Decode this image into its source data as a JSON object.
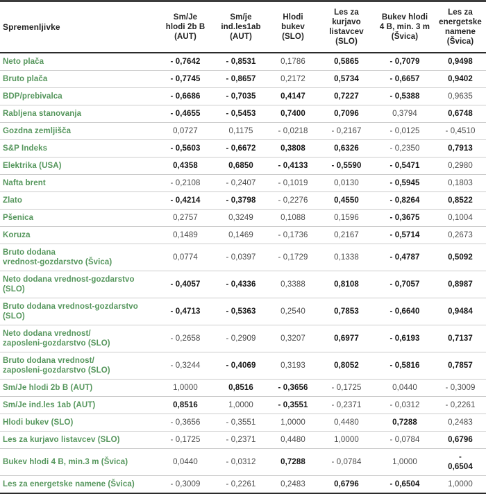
{
  "accent_colors": {
    "row_label_green": "#55965c",
    "bold_value": "#161616",
    "normal_value": "#4a4a4a",
    "separator_gray": "#cccccc",
    "border_dark": "#2b2b2b"
  },
  "chart_data": {
    "type": "table",
    "title": "",
    "variable_header": "Spremenljivke",
    "columns": [
      "Sm/Je\nhlodi 2b B\n(AUT)",
      "Sm/je\nind.les1ab\n(AUT)",
      "Hlodi\nbukev\n(SLO)",
      "Les za\nkurjavo\nlistavcev\n(SLO)",
      "Bukev hlodi\n4 B, min. 3 m\n(Švica)",
      "Les za\nenergetske\nnamene\n(Švica)"
    ],
    "bold_meaning": "bold = emphasized correlation coefficient",
    "rows": [
      {
        "label": "Neto plača",
        "cells": [
          {
            "v": "- 0,7642",
            "b": true
          },
          {
            "v": "- 0,8531",
            "b": true
          },
          {
            "v": "0,1786",
            "b": false
          },
          {
            "v": "0,5865",
            "b": true
          },
          {
            "v": "- 0,7079",
            "b": true
          },
          {
            "v": "0,9498",
            "b": true
          }
        ]
      },
      {
        "label": "Bruto plača",
        "cells": [
          {
            "v": "- 0,7745",
            "b": true
          },
          {
            "v": "- 0,8657",
            "b": true
          },
          {
            "v": "0,2172",
            "b": false
          },
          {
            "v": "0,5734",
            "b": true
          },
          {
            "v": "- 0,6657",
            "b": true
          },
          {
            "v": "0,9402",
            "b": true
          }
        ]
      },
      {
        "label": "BDP/prebivalca",
        "cells": [
          {
            "v": "- 0,6686",
            "b": true
          },
          {
            "v": "- 0,7035",
            "b": true
          },
          {
            "v": "0,4147",
            "b": true
          },
          {
            "v": "0,7227",
            "b": true
          },
          {
            "v": "- 0,5388",
            "b": true
          },
          {
            "v": "0,9635",
            "b": false
          }
        ]
      },
      {
        "label": "Rabljena stanovanja",
        "cells": [
          {
            "v": "- 0,4655",
            "b": true
          },
          {
            "v": "- 0,5453",
            "b": true
          },
          {
            "v": "0,7400",
            "b": true
          },
          {
            "v": "0,7096",
            "b": true
          },
          {
            "v": "0,3794",
            "b": false
          },
          {
            "v": "0,6748",
            "b": true
          }
        ]
      },
      {
        "label": "Gozdna zemljišča",
        "cells": [
          {
            "v": "0,0727",
            "b": false
          },
          {
            "v": "0,1175",
            "b": false
          },
          {
            "v": "- 0,0218",
            "b": false
          },
          {
            "v": "- 0,2167",
            "b": false
          },
          {
            "v": "- 0,0125",
            "b": false
          },
          {
            "v": "- 0,4510",
            "b": false
          }
        ]
      },
      {
        "label": "S&P Indeks",
        "cells": [
          {
            "v": "- 0,5603",
            "b": true
          },
          {
            "v": "- 0,6672",
            "b": true
          },
          {
            "v": "0,3808",
            "b": true
          },
          {
            "v": "0,6326",
            "b": true
          },
          {
            "v": "- 0,2350",
            "b": false
          },
          {
            "v": "0,7913",
            "b": true
          }
        ]
      },
      {
        "label": "Elektrika (USA)",
        "cells": [
          {
            "v": "0,4358",
            "b": true
          },
          {
            "v": "0,6850",
            "b": true
          },
          {
            "v": "- 0,4133",
            "b": true
          },
          {
            "v": "- 0,5590",
            "b": true
          },
          {
            "v": "- 0,5471",
            "b": true
          },
          {
            "v": "0,2980",
            "b": false
          }
        ]
      },
      {
        "label": "Nafta brent",
        "cells": [
          {
            "v": "- 0,2108",
            "b": false
          },
          {
            "v": "- 0,2407",
            "b": false
          },
          {
            "v": "- 0,1019",
            "b": false
          },
          {
            "v": "0,0130",
            "b": false
          },
          {
            "v": "- 0,5945",
            "b": true
          },
          {
            "v": "0,1803",
            "b": false
          }
        ]
      },
      {
        "label": "Zlato",
        "cells": [
          {
            "v": "- 0,4214",
            "b": true
          },
          {
            "v": "- 0,3798",
            "b": true
          },
          {
            "v": "- 0,2276",
            "b": false
          },
          {
            "v": "0,4550",
            "b": true
          },
          {
            "v": "- 0,8264",
            "b": true
          },
          {
            "v": "0,8522",
            "b": true
          }
        ]
      },
      {
        "label": "Pšenica",
        "cells": [
          {
            "v": "0,2757",
            "b": false
          },
          {
            "v": "0,3249",
            "b": false
          },
          {
            "v": "0,1088",
            "b": false
          },
          {
            "v": "0,1596",
            "b": false
          },
          {
            "v": "- 0,3675",
            "b": true
          },
          {
            "v": "0,1004",
            "b": false
          }
        ]
      },
      {
        "label": "Koruza",
        "cells": [
          {
            "v": "0,1489",
            "b": false
          },
          {
            "v": "0,1469",
            "b": false
          },
          {
            "v": "- 0,1736",
            "b": false
          },
          {
            "v": "0,2167",
            "b": false
          },
          {
            "v": "- 0,5714",
            "b": true
          },
          {
            "v": "0,2673",
            "b": false
          }
        ]
      },
      {
        "label": "Bruto dodana\nvrednost-gozdarstvo (Švica)",
        "cells": [
          {
            "v": "0,0774",
            "b": false
          },
          {
            "v": "- 0,0397",
            "b": false
          },
          {
            "v": "- 0,1729",
            "b": false
          },
          {
            "v": "0,1338",
            "b": false
          },
          {
            "v": "- 0,4787",
            "b": true
          },
          {
            "v": "0,5092",
            "b": true
          }
        ]
      },
      {
        "label": "Neto dodana vrednost-gozdarstvo (SLO)",
        "cells": [
          {
            "v": "- 0,4057",
            "b": true
          },
          {
            "v": "- 0,4336",
            "b": true
          },
          {
            "v": "0,3388",
            "b": false
          },
          {
            "v": "0,8108",
            "b": true
          },
          {
            "v": "- 0,7057",
            "b": true
          },
          {
            "v": "0,8987",
            "b": true
          }
        ]
      },
      {
        "label": "Bruto dodana vrednost-gozdarstvo (SLO)",
        "cells": [
          {
            "v": "- 0,4713",
            "b": true
          },
          {
            "v": "- 0,5363",
            "b": true
          },
          {
            "v": "0,2540",
            "b": false
          },
          {
            "v": "0,7853",
            "b": true
          },
          {
            "v": "- 0,6640",
            "b": true
          },
          {
            "v": "0,9484",
            "b": true
          }
        ]
      },
      {
        "label": "Neto dodana vrednost/\nzaposleni-gozdarstvo (SLO)",
        "cells": [
          {
            "v": "- 0,2658",
            "b": false
          },
          {
            "v": "- 0,2909",
            "b": false
          },
          {
            "v": "0,3207",
            "b": false
          },
          {
            "v": "0,6977",
            "b": true
          },
          {
            "v": "- 0,6193",
            "b": true
          },
          {
            "v": "0,7137",
            "b": true
          }
        ]
      },
      {
        "label": "Bruto dodana vrednost/\nzaposleni-gozdarstvo (SLO)",
        "cells": [
          {
            "v": "- 0,3244",
            "b": false
          },
          {
            "v": "- 0,4069",
            "b": true
          },
          {
            "v": "0,3193",
            "b": false
          },
          {
            "v": "0,8052",
            "b": true
          },
          {
            "v": "- 0,5816",
            "b": true
          },
          {
            "v": "0,7857",
            "b": true
          }
        ]
      },
      {
        "label": "Sm/Je hlodi 2b B (AUT)",
        "cells": [
          {
            "v": "1,0000",
            "b": false
          },
          {
            "v": "0,8516",
            "b": true
          },
          {
            "v": "- 0,3656",
            "b": true
          },
          {
            "v": "- 0,1725",
            "b": false
          },
          {
            "v": "0,0440",
            "b": false
          },
          {
            "v": "- 0,3009",
            "b": false
          }
        ]
      },
      {
        "label": "Sm/Je ind.les 1ab (AUT)",
        "cells": [
          {
            "v": "0,8516",
            "b": true
          },
          {
            "v": "1,0000",
            "b": false
          },
          {
            "v": "- 0,3551",
            "b": true
          },
          {
            "v": "- 0,2371",
            "b": false
          },
          {
            "v": "- 0,0312",
            "b": false
          },
          {
            "v": "- 0,2261",
            "b": false
          }
        ]
      },
      {
        "label": "Hlodi bukev (SLO)",
        "cells": [
          {
            "v": "- 0,3656",
            "b": false
          },
          {
            "v": "- 0,3551",
            "b": false
          },
          {
            "v": "1,0000",
            "b": false
          },
          {
            "v": "0,4480",
            "b": false
          },
          {
            "v": "0,7288",
            "b": true
          },
          {
            "v": "0,2483",
            "b": false
          }
        ]
      },
      {
        "label": "Les za kurjavo listavcev (SLO)",
        "cells": [
          {
            "v": "- 0,1725",
            "b": false
          },
          {
            "v": "- 0,2371",
            "b": false
          },
          {
            "v": "0,4480",
            "b": false
          },
          {
            "v": "1,0000",
            "b": false
          },
          {
            "v": "- 0,0784",
            "b": false
          },
          {
            "v": "0,6796",
            "b": true
          }
        ]
      },
      {
        "label": "Bukev hlodi 4 B, min.3 m (Švica)",
        "cells": [
          {
            "v": "0,0440",
            "b": false
          },
          {
            "v": "- 0,0312",
            "b": false
          },
          {
            "v": "0,7288",
            "b": true
          },
          {
            "v": "- 0,0784",
            "b": false
          },
          {
            "v": "1,0000",
            "b": false
          },
          {
            "v": "-\n0,6504",
            "b": true
          }
        ]
      },
      {
        "label": "Les za energetske namene (Švica)",
        "cells": [
          {
            "v": "- 0,3009",
            "b": false
          },
          {
            "v": "- 0,2261",
            "b": false
          },
          {
            "v": "0,2483",
            "b": false
          },
          {
            "v": "0,6796",
            "b": true
          },
          {
            "v": "- 0,6504",
            "b": true
          },
          {
            "v": "1,0000",
            "b": false
          }
        ]
      }
    ]
  }
}
